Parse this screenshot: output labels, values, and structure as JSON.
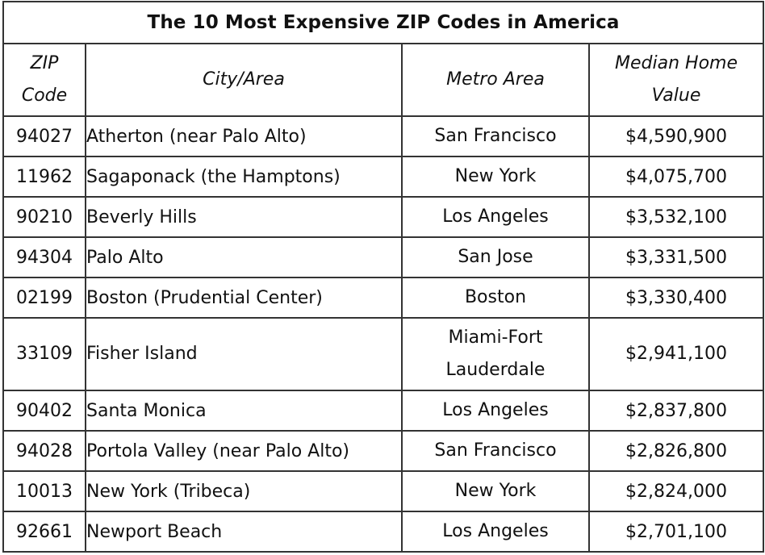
{
  "title": "The 10 Most Expensive ZIP Codes in America",
  "headers": {
    "zip": [
      "ZIP",
      "Code"
    ],
    "city": "City/Area",
    "metro": "Metro Area",
    "value": [
      "Median Home",
      "Value"
    ]
  },
  "rows": [
    {
      "zip": "94027",
      "city": "Atherton (near Palo Alto)",
      "metro": "San Francisco",
      "value": "$4,590,900"
    },
    {
      "zip": "11962",
      "city": "Sagaponack (the Hamptons)",
      "metro": "New York",
      "value": "$4,075,700"
    },
    {
      "zip": "90210",
      "city": "Beverly Hills",
      "metro": "Los Angeles",
      "value": "$3,532,100"
    },
    {
      "zip": "94304",
      "city": "Palo Alto",
      "metro": "San Jose",
      "value": "$3,331,500"
    },
    {
      "zip": "02199",
      "city": "Boston (Prudential Center)",
      "metro": "Boston",
      "value": "$3,330,400"
    },
    {
      "zip": "33109",
      "city": "Fisher Island",
      "metro": "Miami-Fort Lauderdale",
      "metro_lines": [
        "Miami-Fort",
        "Lauderdale"
      ],
      "value": "$2,941,100"
    },
    {
      "zip": "90402",
      "city": "Santa Monica",
      "metro": "Los Angeles",
      "value": "$2,837,800"
    },
    {
      "zip": "94028",
      "city": "Portola Valley (near Palo Alto)",
      "metro": "San Francisco",
      "value": "$2,826,800"
    },
    {
      "zip": "10013",
      "city": "New York (Tribeca)",
      "metro": "New York",
      "value": "$2,824,000"
    },
    {
      "zip": "92661",
      "city": "Newport Beach",
      "metro": "Los Angeles",
      "value": "$2,701,100"
    }
  ]
}
